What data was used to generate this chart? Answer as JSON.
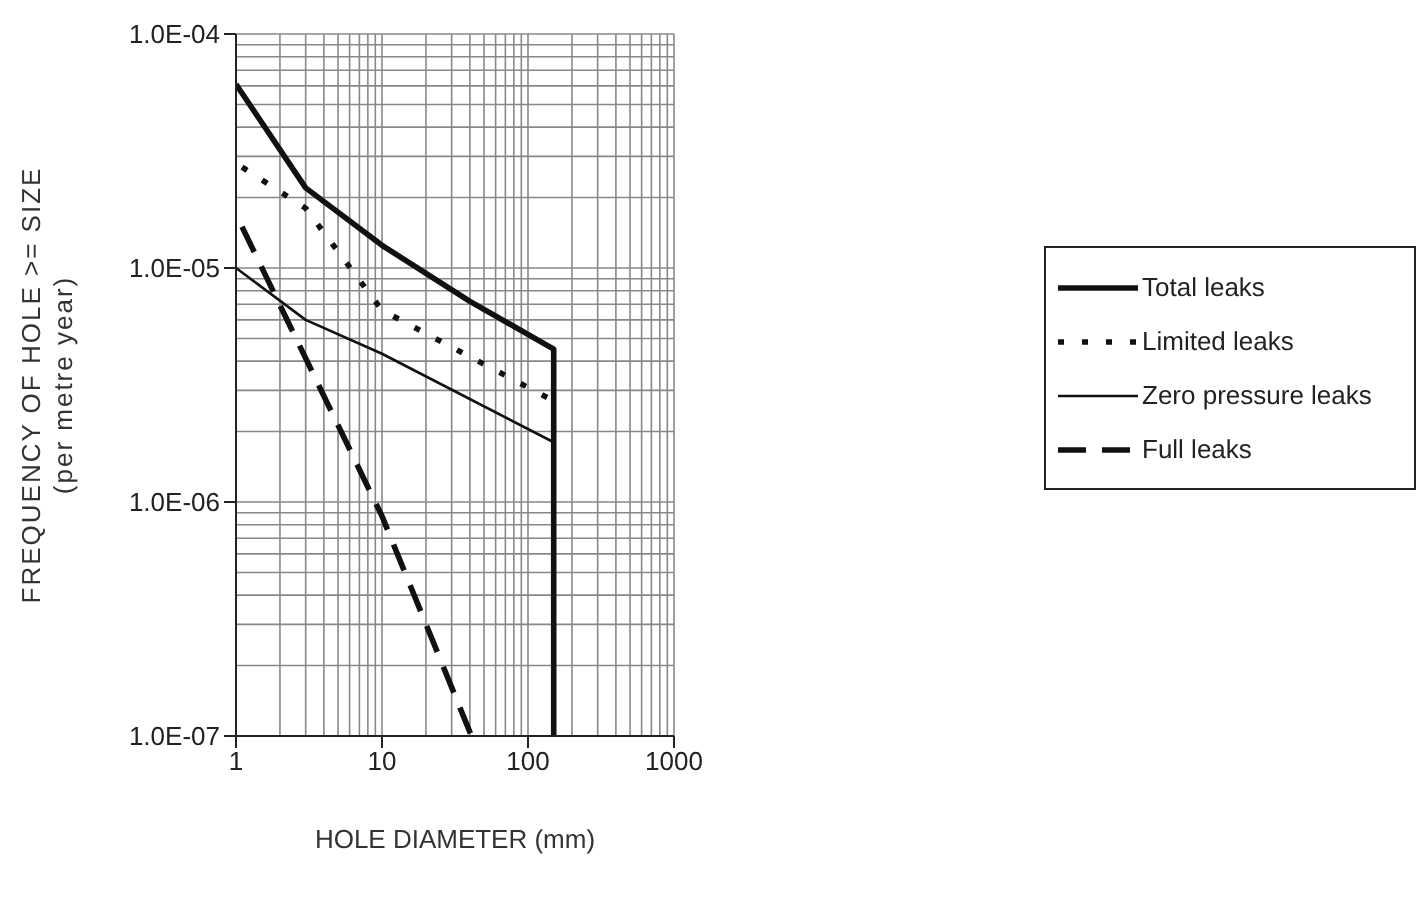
{
  "chart_data": {
    "type": "line",
    "xlabel": "HOLE DIAMETER (mm)",
    "ylabel": "FREQUENCY OF HOLE >= SIZE\n(per metre year)",
    "log": "xy",
    "grid": true,
    "legend": "right",
    "marker": "none",
    "xlim": [
      1,
      1000
    ],
    "xticks": [
      1,
      10,
      100,
      1000
    ],
    "ylim": [
      1e-07,
      0.0001
    ],
    "yticks": [
      {
        "value": 1e-07,
        "label": "1.0E-07"
      },
      {
        "value": 1e-06,
        "label": "1.0E-06"
      },
      {
        "value": 1e-05,
        "label": "1.0E-05"
      },
      {
        "value": 0.0001,
        "label": "1.0E-04"
      }
    ],
    "series": [
      {
        "name": "Total leaks",
        "color": "#111111",
        "line_style": "solid",
        "x": [
          1,
          3,
          10,
          40,
          150,
          150
        ],
        "values": [
          6.1e-05,
          2.2e-05,
          1.25e-05,
          7.2e-06,
          4.5e-06,
          1e-07
        ]
      },
      {
        "name": "Limited leaks",
        "color": "#111111",
        "line_style": "dotted",
        "x": [
          1.1,
          3,
          10,
          150
        ],
        "values": [
          2.7e-05,
          1.8e-05,
          6.6e-06,
          2.7e-06
        ]
      },
      {
        "name": "Zero pressure leaks",
        "color": "#111111",
        "line_style": "solid",
        "x": [
          1,
          3,
          10,
          150
        ],
        "values": [
          1e-05,
          6e-06,
          4.3e-06,
          1.8e-06
        ]
      },
      {
        "name": "Full leaks",
        "color": "#111111",
        "line_style": "dashed",
        "x": [
          1.1,
          10,
          41
        ],
        "values": [
          1.5e-05,
          8.7e-07,
          1e-07
        ]
      }
    ]
  }
}
